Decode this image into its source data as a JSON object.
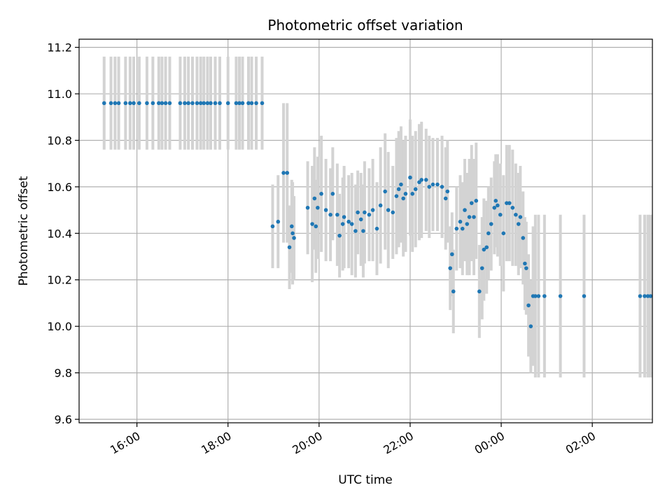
{
  "chart_data": {
    "type": "scatter",
    "title": "Photometric offset variation",
    "xlabel": "UTC time",
    "ylabel": "Photometric offset",
    "xunit": "hours since 14:00 UTC",
    "xlim": [
      0.73,
      13.32
    ],
    "ylim": [
      9.585,
      11.235
    ],
    "xticks": [
      {
        "v": 2,
        "label": "16:00"
      },
      {
        "v": 4,
        "label": "18:00"
      },
      {
        "v": 6,
        "label": "20:00"
      },
      {
        "v": 8,
        "label": "22:00"
      },
      {
        "v": 10,
        "label": "00:00"
      },
      {
        "v": 12,
        "label": "02:00"
      }
    ],
    "yticks": [
      {
        "v": 9.6,
        "label": "9.6"
      },
      {
        "v": 9.8,
        "label": "9.8"
      },
      {
        "v": 10.0,
        "label": "10.0"
      },
      {
        "v": 10.2,
        "label": "10.2"
      },
      {
        "v": 10.4,
        "label": "10.4"
      },
      {
        "v": 10.6,
        "label": "10.6"
      },
      {
        "v": 10.8,
        "label": "10.8"
      },
      {
        "v": 11.0,
        "label": "11.0"
      },
      {
        "v": 11.2,
        "label": "11.2"
      }
    ],
    "grid": true,
    "marker_color": "#1f77b4",
    "errorbar_color": "#d3d3d3",
    "points": [
      [
        1.28,
        10.96,
        0.2
      ],
      [
        1.43,
        10.96,
        0.2
      ],
      [
        1.52,
        10.96,
        0.2
      ],
      [
        1.6,
        10.96,
        0.2
      ],
      [
        1.75,
        10.96,
        0.2
      ],
      [
        1.85,
        10.96,
        0.2
      ],
      [
        1.93,
        10.96,
        0.2
      ],
      [
        2.05,
        10.96,
        0.2
      ],
      [
        2.22,
        10.96,
        0.2
      ],
      [
        2.35,
        10.96,
        0.2
      ],
      [
        2.48,
        10.96,
        0.2
      ],
      [
        2.55,
        10.96,
        0.2
      ],
      [
        2.63,
        10.96,
        0.2
      ],
      [
        2.72,
        10.96,
        0.2
      ],
      [
        2.95,
        10.96,
        0.2
      ],
      [
        3.05,
        10.96,
        0.2
      ],
      [
        3.13,
        10.96,
        0.2
      ],
      [
        3.22,
        10.96,
        0.2
      ],
      [
        3.32,
        10.96,
        0.2
      ],
      [
        3.4,
        10.96,
        0.2
      ],
      [
        3.47,
        10.96,
        0.2
      ],
      [
        3.55,
        10.96,
        0.2
      ],
      [
        3.62,
        10.96,
        0.2
      ],
      [
        3.72,
        10.96,
        0.2
      ],
      [
        3.82,
        10.96,
        0.2
      ],
      [
        4.0,
        10.96,
        0.2
      ],
      [
        4.18,
        10.96,
        0.2
      ],
      [
        4.25,
        10.96,
        0.2
      ],
      [
        4.32,
        10.96,
        0.2
      ],
      [
        4.45,
        10.96,
        0.2
      ],
      [
        4.52,
        10.96,
        0.2
      ],
      [
        4.62,
        10.96,
        0.2
      ],
      [
        4.75,
        10.96,
        0.2
      ],
      [
        4.98,
        10.43,
        0.18
      ],
      [
        5.1,
        10.45,
        0.2
      ],
      [
        5.22,
        10.66,
        0.3
      ],
      [
        5.3,
        10.66,
        0.3
      ],
      [
        5.35,
        10.34,
        0.18
      ],
      [
        5.4,
        10.43,
        0.2
      ],
      [
        5.42,
        10.4,
        0.22
      ],
      [
        5.45,
        10.38,
        0.18
      ],
      [
        5.75,
        10.51,
        0.2
      ],
      [
        5.85,
        10.44,
        0.25
      ],
      [
        5.9,
        10.55,
        0.22
      ],
      [
        5.93,
        10.43,
        0.2
      ],
      [
        5.97,
        10.51,
        0.22
      ],
      [
        6.05,
        10.57,
        0.25
      ],
      [
        6.15,
        10.5,
        0.22
      ],
      [
        6.25,
        10.48,
        0.2
      ],
      [
        6.3,
        10.57,
        0.2
      ],
      [
        6.4,
        10.48,
        0.22
      ],
      [
        6.45,
        10.39,
        0.18
      ],
      [
        6.52,
        10.44,
        0.2
      ],
      [
        6.55,
        10.47,
        0.22
      ],
      [
        6.65,
        10.45,
        0.2
      ],
      [
        6.72,
        10.44,
        0.22
      ],
      [
        6.8,
        10.41,
        0.2
      ],
      [
        6.85,
        10.49,
        0.18
      ],
      [
        6.92,
        10.46,
        0.2
      ],
      [
        6.97,
        10.41,
        0.2
      ],
      [
        7.0,
        10.49,
        0.22
      ],
      [
        7.1,
        10.48,
        0.2
      ],
      [
        7.18,
        10.5,
        0.22
      ],
      [
        7.27,
        10.42,
        0.2
      ],
      [
        7.35,
        10.52,
        0.25
      ],
      [
        7.45,
        10.58,
        0.25
      ],
      [
        7.52,
        10.5,
        0.25
      ],
      [
        7.62,
        10.49,
        0.2
      ],
      [
        7.7,
        10.56,
        0.25
      ],
      [
        7.75,
        10.59,
        0.25
      ],
      [
        7.8,
        10.61,
        0.25
      ],
      [
        7.85,
        10.55,
        0.25
      ],
      [
        7.9,
        10.57,
        0.25
      ],
      [
        8.0,
        10.64,
        0.25
      ],
      [
        8.05,
        10.57,
        0.25
      ],
      [
        8.12,
        10.59,
        0.25
      ],
      [
        8.2,
        10.62,
        0.25
      ],
      [
        8.25,
        10.63,
        0.25
      ],
      [
        8.35,
        10.63,
        0.22
      ],
      [
        8.42,
        10.6,
        0.22
      ],
      [
        8.5,
        10.61,
        0.2
      ],
      [
        8.6,
        10.61,
        0.2
      ],
      [
        8.7,
        10.6,
        0.22
      ],
      [
        8.78,
        10.55,
        0.22
      ],
      [
        8.82,
        10.58,
        0.22
      ],
      [
        8.88,
        10.25,
        0.18
      ],
      [
        8.92,
        10.31,
        0.18
      ],
      [
        8.95,
        10.15,
        0.18
      ],
      [
        9.02,
        10.42,
        0.18
      ],
      [
        9.1,
        10.45,
        0.2
      ],
      [
        9.15,
        10.42,
        0.2
      ],
      [
        9.2,
        10.5,
        0.22
      ],
      [
        9.25,
        10.44,
        0.22
      ],
      [
        9.3,
        10.47,
        0.25
      ],
      [
        9.35,
        10.53,
        0.25
      ],
      [
        9.4,
        10.47,
        0.25
      ],
      [
        9.45,
        10.54,
        0.25
      ],
      [
        9.52,
        10.15,
        0.2
      ],
      [
        9.58,
        10.25,
        0.22
      ],
      [
        9.62,
        10.33,
        0.22
      ],
      [
        9.68,
        10.34,
        0.2
      ],
      [
        9.72,
        10.4,
        0.2
      ],
      [
        9.78,
        10.44,
        0.2
      ],
      [
        9.85,
        10.51,
        0.2
      ],
      [
        9.88,
        10.54,
        0.2
      ],
      [
        9.92,
        10.52,
        0.22
      ],
      [
        9.98,
        10.48,
        0.22
      ],
      [
        10.05,
        10.4,
        0.25
      ],
      [
        10.12,
        10.53,
        0.25
      ],
      [
        10.18,
        10.53,
        0.25
      ],
      [
        10.25,
        10.51,
        0.25
      ],
      [
        10.32,
        10.48,
        0.22
      ],
      [
        10.38,
        10.44,
        0.22
      ],
      [
        10.42,
        10.47,
        0.22
      ],
      [
        10.48,
        10.38,
        0.2
      ],
      [
        10.52,
        10.27,
        0.2
      ],
      [
        10.55,
        10.25,
        0.2
      ],
      [
        10.6,
        10.09,
        0.22
      ],
      [
        10.65,
        10.0,
        0.2
      ],
      [
        10.7,
        10.13,
        0.3
      ],
      [
        10.75,
        10.13,
        0.35
      ],
      [
        10.82,
        10.13,
        0.35
      ],
      [
        10.95,
        10.13,
        0.35
      ],
      [
        11.3,
        10.13,
        0.35
      ],
      [
        11.82,
        10.13,
        0.35
      ],
      [
        13.05,
        10.13,
        0.35
      ],
      [
        13.15,
        10.13,
        0.35
      ],
      [
        13.22,
        10.13,
        0.35
      ],
      [
        13.28,
        10.13,
        0.35
      ]
    ]
  }
}
